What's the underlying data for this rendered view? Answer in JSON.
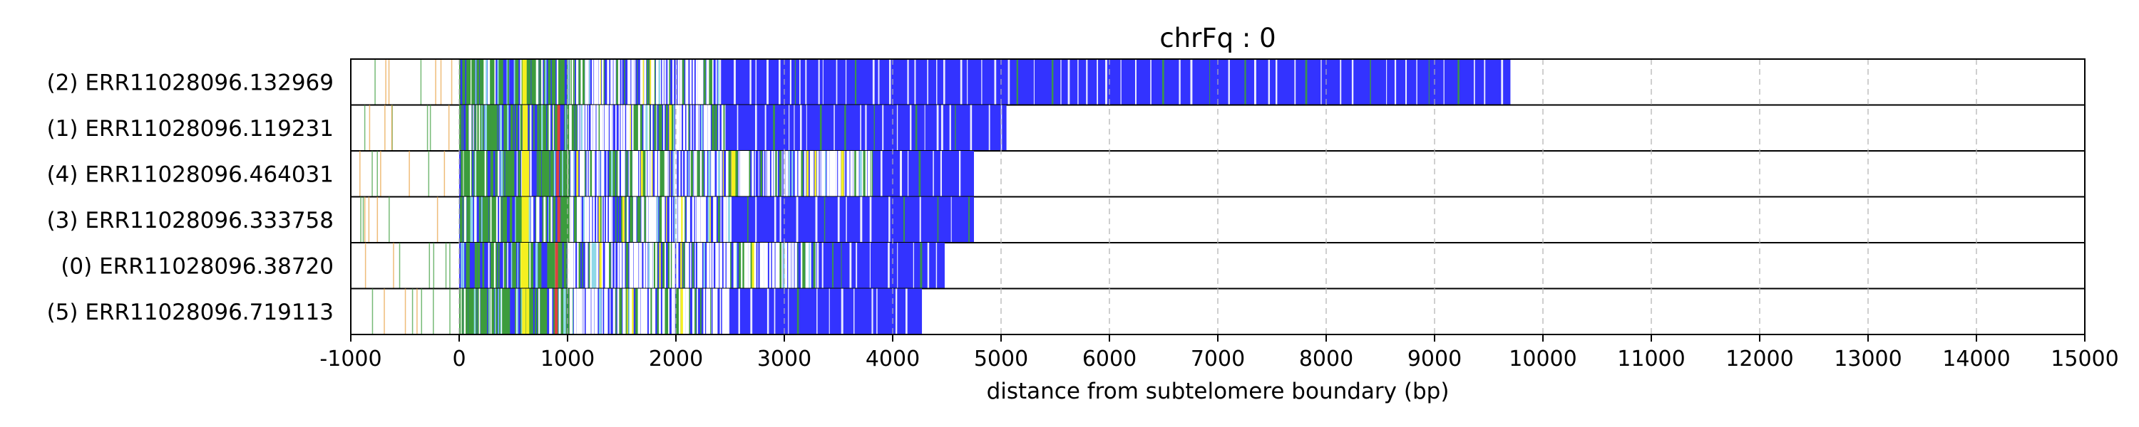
{
  "chart_data": {
    "type": "heatmap",
    "title": "chrFq : 0",
    "xlabel": "distance from subtelomere boundary (bp)",
    "ylabel": "",
    "xlim": [
      -1000,
      15000
    ],
    "x_ticks": [
      "-1000",
      "0",
      "1000",
      "2000",
      "3000",
      "4000",
      "5000",
      "6000",
      "7000",
      "8000",
      "9000",
      "10000",
      "11000",
      "12000",
      "13000",
      "14000",
      "15000"
    ],
    "x_tick_values": [
      -1000,
      0,
      1000,
      2000,
      3000,
      4000,
      5000,
      6000,
      7000,
      8000,
      9000,
      10000,
      11000,
      12000,
      13000,
      14000,
      15000
    ],
    "grid": true,
    "colors": {
      "repeat": "#3333ff",
      "variant_green": "#3c9c3c",
      "variant_yellow": "#f5f020",
      "variant_red": "#e04040",
      "variant_cyan": "#8fd8e8",
      "variant_orange": "#e8a040",
      "gap": "#ffffff"
    },
    "rows": [
      {
        "label": "(2) ERR11028096.132969",
        "end": 9700,
        "dense_from": 2400
      },
      {
        "label": "(1) ERR11028096.119231",
        "end": 5050,
        "dense_from": 2450
      },
      {
        "label": "(4) ERR11028096.464031",
        "end": 4750,
        "dense_from": 3800
      },
      {
        "label": "(3) ERR11028096.333758",
        "end": 4750,
        "dense_from": 2500
      },
      {
        "label": "(0) ERR11028096.38720",
        "end": 4480,
        "dense_from": 3300
      },
      {
        "label": "(5) ERR11028096.719113",
        "end": 4270,
        "dense_from": 2480
      }
    ]
  }
}
